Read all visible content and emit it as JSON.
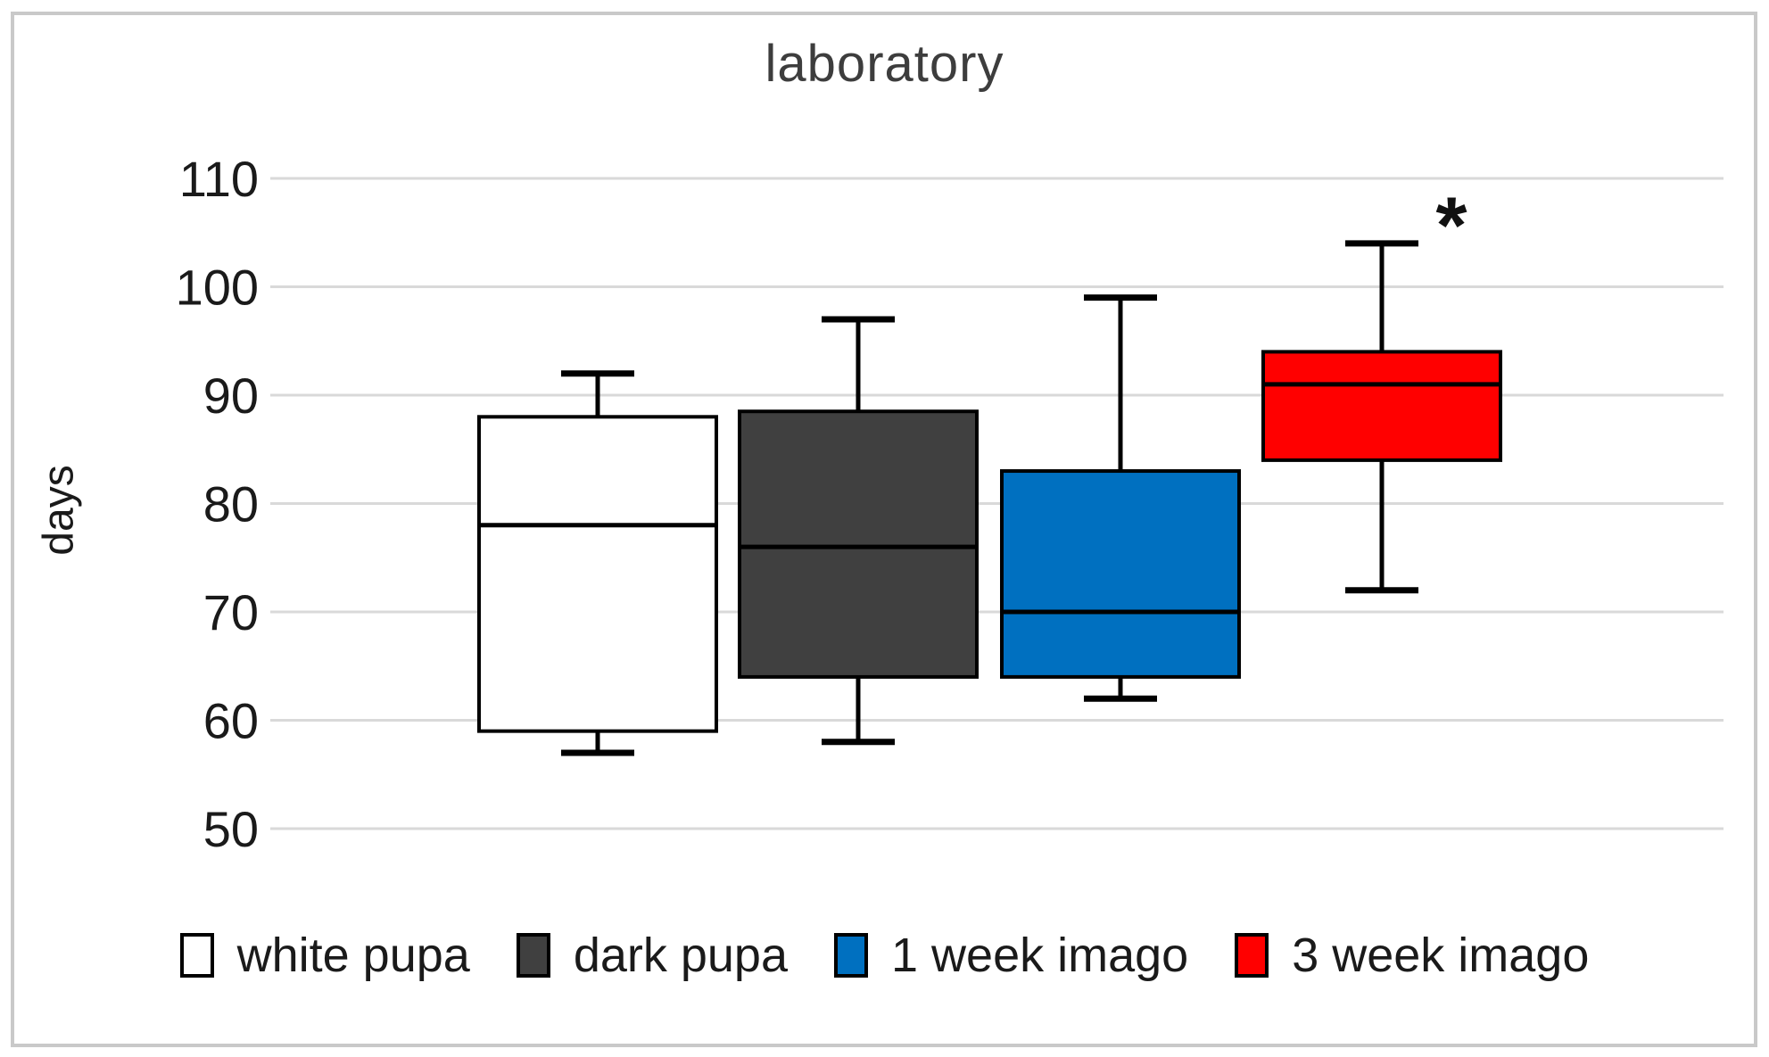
{
  "chart_data": {
    "type": "boxplot",
    "title": "laboratory",
    "ylabel": "days",
    "xlabel": "",
    "ylim": [
      50,
      110
    ],
    "yticks": [
      110,
      100,
      90,
      80,
      70,
      60,
      50
    ],
    "grid": true,
    "legend_position": "bottom",
    "series": [
      {
        "name": "white pupa",
        "color": "#FFFFFF",
        "whisker_min": 57,
        "q1": 59,
        "median": 78,
        "q3": 88,
        "whisker_max": 92,
        "annotation": ""
      },
      {
        "name": "dark pupa",
        "color": "#404040",
        "whisker_min": 58,
        "q1": 64,
        "median": 76,
        "q3": 88.5,
        "whisker_max": 97,
        "annotation": ""
      },
      {
        "name": "1 week imago",
        "color": "#0070C0",
        "whisker_min": 62,
        "q1": 64,
        "median": 70,
        "q3": 83,
        "whisker_max": 99,
        "annotation": ""
      },
      {
        "name": "3 week imago",
        "color": "#FF0000",
        "whisker_min": 72,
        "q1": 84,
        "median": 91,
        "q3": 94,
        "whisker_max": 104,
        "annotation": "*"
      }
    ],
    "colors": {
      "gridline": "#D9D9D9",
      "box_stroke": "#000000",
      "title_text": "#3d3d3d",
      "axis_text": "#1a1a1a",
      "figure_border": "#c9c9c9"
    }
  }
}
